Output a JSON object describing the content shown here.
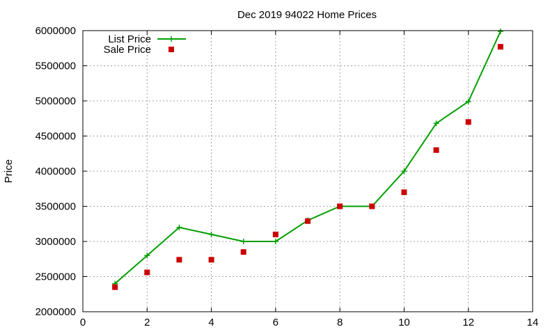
{
  "chart_data": {
    "type": "line",
    "title": "Dec 2019 94022 Home Prices",
    "xlabel": "",
    "ylabel": "Price",
    "xlim": [
      0,
      14
    ],
    "ylim": [
      2000000,
      6000000
    ],
    "x_ticks": [
      "0",
      "2",
      "4",
      "6",
      "8",
      "10",
      "12",
      "14"
    ],
    "y_ticks": [
      "2000000",
      "2500000",
      "3000000",
      "3500000",
      "4000000",
      "4500000",
      "5000000",
      "5500000",
      "6000000"
    ],
    "grid": true,
    "legend_position": "top-left",
    "series": [
      {
        "name": "List Price",
        "style": "line-with-plus-markers",
        "color": "#009e00",
        "x": [
          1,
          2,
          3,
          4,
          5,
          6,
          7,
          8,
          9,
          10,
          11,
          12,
          13
        ],
        "y": [
          2400000,
          2800000,
          3200000,
          3100000,
          3000000,
          3000000,
          3300000,
          3500000,
          3500000,
          4000000,
          4680000,
          4990000,
          5990000
        ]
      },
      {
        "name": "Sale Price",
        "style": "square-markers",
        "color": "#cc0000",
        "x": [
          1,
          2,
          3,
          4,
          5,
          6,
          7,
          8,
          9,
          10,
          11,
          12,
          13
        ],
        "y": [
          2350000,
          2560000,
          2740000,
          2740000,
          2850000,
          3100000,
          3290000,
          3500000,
          3500000,
          3700000,
          4300000,
          4700000,
          5770000
        ]
      }
    ]
  }
}
